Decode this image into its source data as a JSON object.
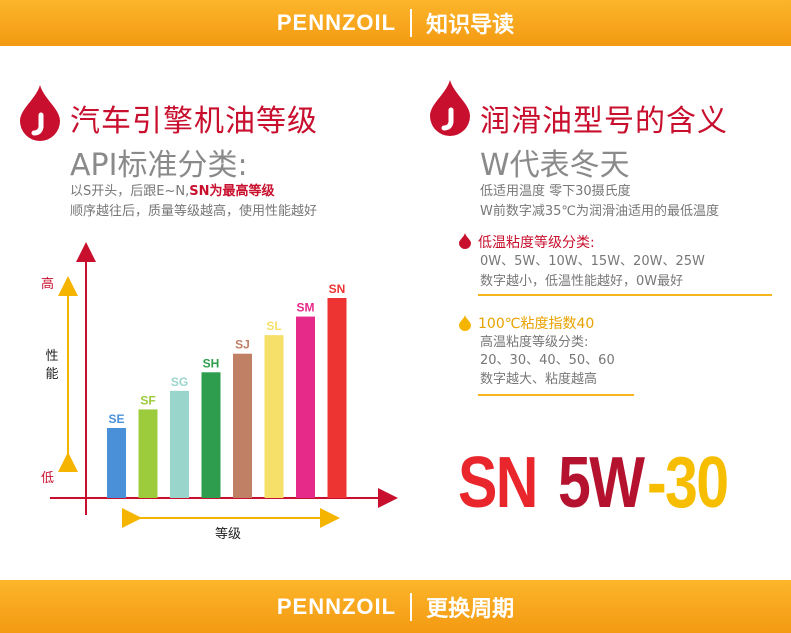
{
  "top_banner": {
    "brand": "PENNZOIL",
    "title": "知识导读"
  },
  "bottom_banner": {
    "brand": "PENNZOIL",
    "title": "更换周期"
  },
  "left": {
    "title": "汽车引擎机油等级",
    "subtitle": "API标准分类:",
    "line1_prefix": "以S开头，后跟E~N,",
    "line1_highlight": "SN为最高等级",
    "line2": "顺序越往后，质量等级越高，使用性能越好"
  },
  "right": {
    "title": "润滑油型号的含义",
    "subtitle": "W代表冬天",
    "line1": "低适用温度 零下30摄氏度",
    "line2": "W前数字减35℃为润滑油适用的最低温度",
    "low_heading": "低温粘度等级分类:",
    "low_line1": "0W、5W、10W、15W、20W、25W",
    "low_line2": "数字越小，低温性能越好，0W最好",
    "high_heading": "100℃粘度指数40",
    "high_line1": "高温粘度等级分类:",
    "high_line2": "20、30、40、50、60",
    "high_line3": "数字越大、粘度越高"
  },
  "grade_label": {
    "sn": "SN",
    "w": "5W",
    "dash_num": "-30"
  },
  "colors": {
    "red": "#c8102e",
    "dark_red": "#b01030",
    "orange": "#f5a623",
    "yellow": "#f7be00",
    "gray": "#888888"
  },
  "icons": [
    "oil-drop-icon",
    "small-oil-drop-icon",
    "yellow-drop-icon"
  ],
  "chart_data": {
    "type": "bar",
    "categories": [
      "SE",
      "SF",
      "SG",
      "SH",
      "SJ",
      "SL",
      "SM",
      "SN"
    ],
    "values": [
      1,
      2,
      3,
      4,
      5,
      6,
      7,
      8
    ],
    "colors": [
      "#4a90d9",
      "#9ccb3b",
      "#9ad5cc",
      "#2e9e4e",
      "#c08066",
      "#f7e06a",
      "#e62a8a",
      "#ee3333"
    ],
    "ylabel": "性能",
    "xlabel": "等级",
    "y_high": "高",
    "y_low": "低",
    "grid": false
  }
}
